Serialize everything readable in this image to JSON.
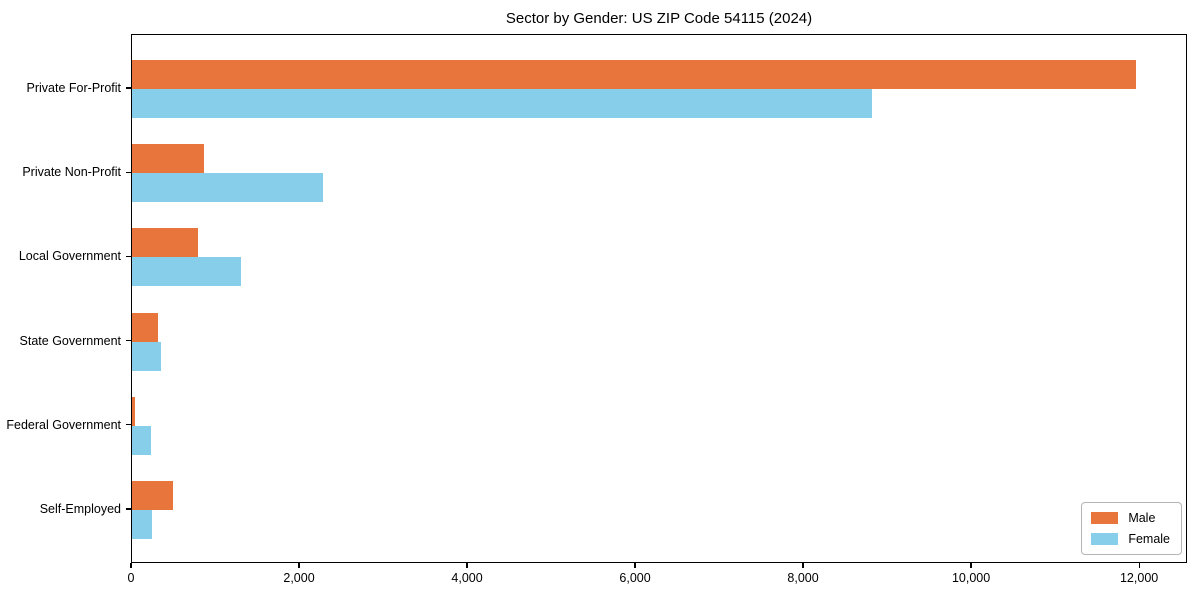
{
  "chart_data": {
    "type": "bar",
    "orientation": "horizontal",
    "title": "Sector by Gender: US ZIP Code 54115 (2024)",
    "categories": [
      "Private For-Profit",
      "Private Non-Profit",
      "Local Government",
      "State Government",
      "Federal Government",
      "Self-Employed"
    ],
    "series": [
      {
        "name": "Male",
        "color": "#E8763C",
        "values": [
          11950,
          860,
          790,
          310,
          40,
          490
        ]
      },
      {
        "name": "Female",
        "color": "#87CEEB",
        "values": [
          8810,
          2270,
          1300,
          345,
          230,
          240
        ]
      }
    ],
    "xlabel": "",
    "ylabel": "",
    "xlim": [
      0,
      12570
    ],
    "xticks": [
      0,
      2000,
      4000,
      6000,
      8000,
      10000,
      12000
    ],
    "xtick_labels": [
      "0",
      "2,000",
      "4,000",
      "6,000",
      "8,000",
      "10,000",
      "12,000"
    ],
    "legend": {
      "entries": [
        "Male",
        "Female"
      ],
      "position": "lower right"
    },
    "grid": false,
    "background": "#ffffff",
    "axis_color": "#000000",
    "text_color": "#000000"
  }
}
